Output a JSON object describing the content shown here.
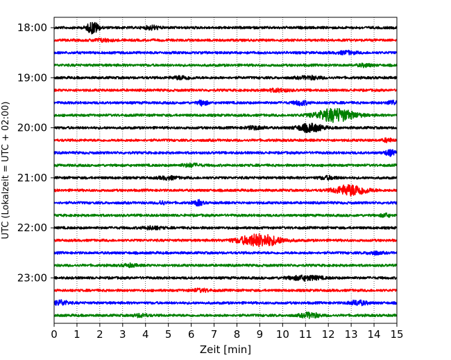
{
  "chart_data": {
    "type": "line",
    "title": "",
    "xlabel": "Zeit  [min]",
    "ylabel": "UTC (Lokalzeit = UTC + 02:00)",
    "xlim": [
      0,
      15
    ],
    "x_ticks": [
      "0",
      "1",
      "2",
      "3",
      "4",
      "5",
      "6",
      "7",
      "8",
      "9",
      "10",
      "11",
      "12",
      "13",
      "14",
      "15"
    ],
    "y_ticks": [
      "18:00",
      "19:00",
      "20:00",
      "21:00",
      "22:00",
      "23:00"
    ],
    "grid": "vertical dotted",
    "trace_start_first": "18:00",
    "trace_interval_min": 15,
    "trace_colors": [
      "#000000",
      "#ff0000",
      "#0000ff",
      "#008000"
    ],
    "series": [
      {
        "start": "18:00",
        "color": "#000000",
        "events": [
          {
            "t": 1.7,
            "amp": 0.85,
            "width": 0.25
          },
          {
            "t": 4.3,
            "amp": 0.25,
            "width": 0.3
          }
        ]
      },
      {
        "start": "18:15",
        "color": "#ff0000",
        "events": [
          {
            "t": 2.1,
            "amp": 0.18,
            "width": 0.4
          }
        ]
      },
      {
        "start": "18:30",
        "color": "#0000ff",
        "events": [
          {
            "t": 12.8,
            "amp": 0.2,
            "width": 0.4
          }
        ]
      },
      {
        "start": "18:45",
        "color": "#008000",
        "events": [
          {
            "t": 13.6,
            "amp": 0.18,
            "width": 0.3
          }
        ]
      },
      {
        "start": "19:00",
        "color": "#000000",
        "events": [
          {
            "t": 5.6,
            "amp": 0.22,
            "width": 0.4
          },
          {
            "t": 11.2,
            "amp": 0.2,
            "width": 0.5
          }
        ]
      },
      {
        "start": "19:15",
        "color": "#ff0000",
        "events": [
          {
            "t": 9.8,
            "amp": 0.18,
            "width": 0.5
          }
        ]
      },
      {
        "start": "19:30",
        "color": "#0000ff",
        "events": [
          {
            "t": 6.5,
            "amp": 0.35,
            "width": 0.2
          },
          {
            "t": 10.8,
            "amp": 0.3,
            "width": 0.3
          },
          {
            "t": 14.8,
            "amp": 0.3,
            "width": 0.2
          }
        ]
      },
      {
        "start": "19:45",
        "color": "#008000",
        "events": [
          {
            "t": 12.3,
            "amp": 0.9,
            "width": 0.85
          }
        ]
      },
      {
        "start": "20:00",
        "color": "#000000",
        "events": [
          {
            "t": 11.2,
            "amp": 0.55,
            "width": 0.55
          },
          {
            "t": 8.8,
            "amp": 0.2,
            "width": 0.4
          }
        ]
      },
      {
        "start": "20:15",
        "color": "#ff0000",
        "events": [
          {
            "t": 14.6,
            "amp": 0.25,
            "width": 0.2
          }
        ]
      },
      {
        "start": "20:30",
        "color": "#0000ff",
        "events": [
          {
            "t": 14.7,
            "amp": 0.35,
            "width": 0.25
          }
        ]
      },
      {
        "start": "20:45",
        "color": "#008000",
        "events": [
          {
            "t": 6.0,
            "amp": 0.2,
            "width": 0.4
          }
        ]
      },
      {
        "start": "21:00",
        "color": "#000000",
        "events": [
          {
            "t": 5.0,
            "amp": 0.2,
            "width": 0.4
          },
          {
            "t": 12.0,
            "amp": 0.2,
            "width": 0.4
          }
        ]
      },
      {
        "start": "21:15",
        "color": "#ff0000",
        "events": [
          {
            "t": 13.0,
            "amp": 0.75,
            "width": 0.7
          }
        ]
      },
      {
        "start": "21:30",
        "color": "#0000ff",
        "events": [
          {
            "t": 6.3,
            "amp": 0.35,
            "width": 0.2
          },
          {
            "t": 4.7,
            "amp": 0.25,
            "width": 0.15
          }
        ]
      },
      {
        "start": "21:45",
        "color": "#008000",
        "events": [
          {
            "t": 14.5,
            "amp": 0.22,
            "width": 0.2
          }
        ]
      },
      {
        "start": "22:00",
        "color": "#000000",
        "events": [
          {
            "t": 4.3,
            "amp": 0.2,
            "width": 0.4
          }
        ]
      },
      {
        "start": "22:15",
        "color": "#ff0000",
        "events": [
          {
            "t": 9.0,
            "amp": 0.85,
            "width": 0.9
          }
        ]
      },
      {
        "start": "22:30",
        "color": "#0000ff",
        "events": [
          {
            "t": 14.0,
            "amp": 0.2,
            "width": 0.3
          }
        ]
      },
      {
        "start": "22:45",
        "color": "#008000",
        "events": [
          {
            "t": 3.3,
            "amp": 0.18,
            "width": 0.3
          }
        ]
      },
      {
        "start": "23:00",
        "color": "#000000",
        "events": [
          {
            "t": 11.0,
            "amp": 0.3,
            "width": 0.7
          }
        ]
      },
      {
        "start": "23:15",
        "color": "#ff0000",
        "events": [
          {
            "t": 6.4,
            "amp": 0.18,
            "width": 0.4
          }
        ]
      },
      {
        "start": "23:30",
        "color": "#0000ff",
        "events": [
          {
            "t": 0.3,
            "amp": 0.35,
            "width": 0.3
          },
          {
            "t": 13.3,
            "amp": 0.3,
            "width": 0.4
          }
        ]
      },
      {
        "start": "23:45",
        "color": "#008000",
        "events": [
          {
            "t": 11.2,
            "amp": 0.35,
            "width": 0.4
          },
          {
            "t": 3.8,
            "amp": 0.2,
            "width": 0.3
          }
        ]
      }
    ]
  }
}
